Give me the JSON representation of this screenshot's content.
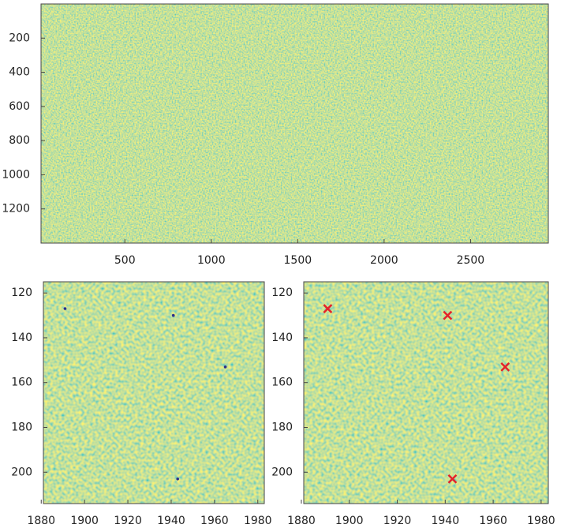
{
  "chart_data": [
    {
      "type": "heatmap",
      "xlim": [
        15,
        2950
      ],
      "ylim": [
        0,
        1400
      ],
      "y_reversed": true,
      "xticks": [
        500,
        1000,
        1500,
        2000,
        2500
      ],
      "yticks": [
        200,
        400,
        600,
        800,
        1000,
        1200
      ]
    },
    {
      "type": "heatmap",
      "xlim": [
        1881,
        1983
      ],
      "ylim": [
        115,
        214
      ],
      "y_reversed": true,
      "xticks": [
        1880,
        1900,
        1920,
        1940,
        1960,
        1980
      ],
      "yticks": [
        120,
        140,
        160,
        180,
        200
      ],
      "points": {
        "x": [
          1891,
          1941,
          1965,
          1943
        ],
        "y": [
          127,
          130,
          153,
          203
        ],
        "marker": "dot",
        "color": "#2b2f8a"
      }
    },
    {
      "type": "heatmap",
      "xlim": [
        1881,
        1983
      ],
      "ylim": [
        115,
        214
      ],
      "y_reversed": true,
      "xticks": [
        1880,
        1900,
        1920,
        1940,
        1960,
        1980
      ],
      "yticks": [
        120,
        140,
        160,
        180,
        200
      ],
      "points": {
        "x": [
          1891,
          1941,
          1965,
          1943
        ],
        "y": [
          127,
          130,
          153,
          203
        ],
        "marker": "x",
        "color": "#e3222b"
      }
    }
  ]
}
